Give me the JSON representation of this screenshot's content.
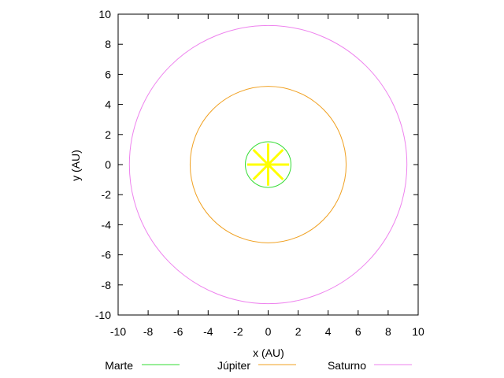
{
  "chart_data": {
    "type": "line",
    "title": "",
    "xlabel": "x (AU)",
    "ylabel": "y (AU)",
    "xlim": [
      -10,
      10
    ],
    "ylim": [
      -10,
      10
    ],
    "xticks": [
      -10,
      -8,
      -6,
      -4,
      -2,
      0,
      2,
      4,
      6,
      8,
      10
    ],
    "yticks": [
      -10,
      -8,
      -6,
      -4,
      -2,
      0,
      2,
      4,
      6,
      8,
      10
    ],
    "grid": false,
    "legend_position": "bottom",
    "series": [
      {
        "name": "Marte",
        "shape": "circle",
        "center": [
          0,
          0
        ],
        "radius": 1.52,
        "color": "#33dd33"
      },
      {
        "name": "Júpiter",
        "shape": "circle",
        "center": [
          0,
          0
        ],
        "radius": 5.2,
        "color": "#f0a020"
      },
      {
        "name": "Saturno",
        "shape": "circle",
        "center": [
          0,
          0
        ],
        "radius": 9.25,
        "color": "#ee82ee"
      }
    ],
    "sun": {
      "center": [
        0,
        0
      ],
      "radius": 1.4,
      "rays": 8,
      "color": "#ffff00"
    }
  }
}
